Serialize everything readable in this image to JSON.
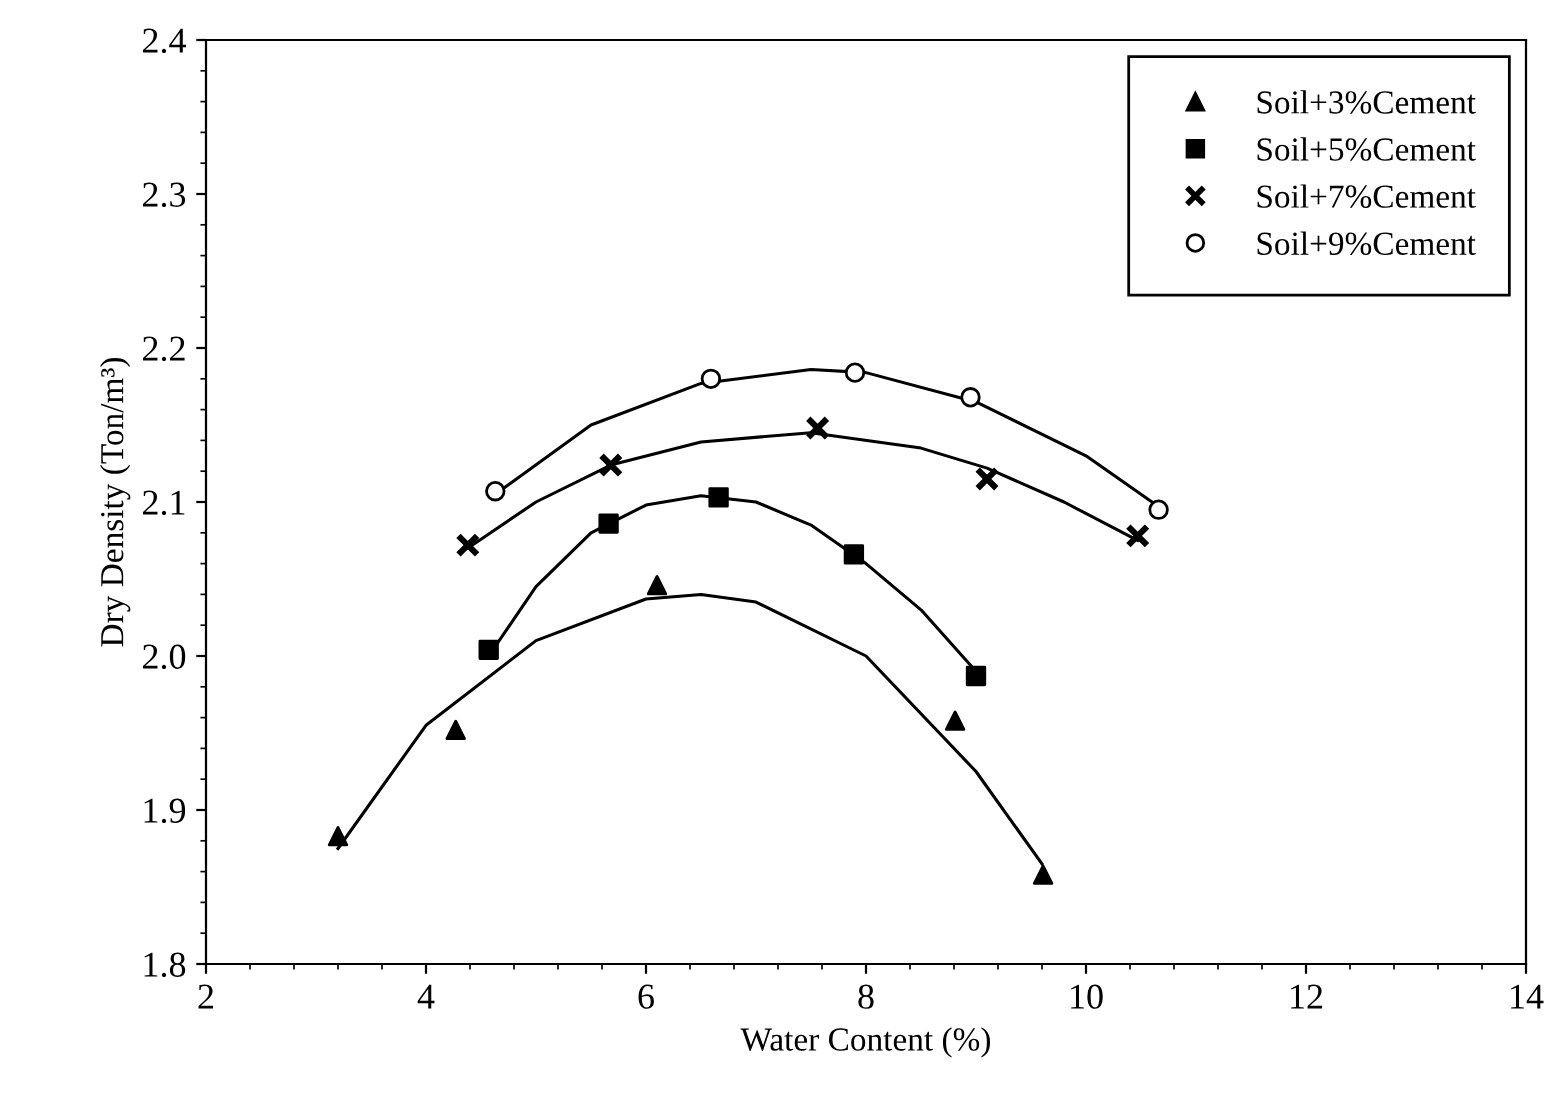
{
  "chart_data": {
    "type": "scatter",
    "xlabel": "Water Content (%)",
    "ylabel": "Dry Density (Ton/m³)",
    "xlim": [
      2,
      14
    ],
    "xticks": [
      2,
      4,
      6,
      8,
      10,
      12,
      14
    ],
    "ylim": [
      1.8,
      2.4
    ],
    "yticks": [
      1.8,
      1.9,
      {
        "value": 2.0,
        "label": "2.0"
      },
      2.1,
      2.2,
      2.3,
      2.4
    ],
    "grid": false,
    "legend": "top right",
    "series": [
      {
        "name": "Soil+3%Cement",
        "color": "#000000",
        "marker": "triangle",
        "x": [
          3.2,
          4.27,
          6.1,
          8.81,
          9.61
        ],
        "values": [
          1.883,
          1.952,
          2.046,
          1.958,
          1.858
        ]
      },
      {
        "name": "Soil+5%Cement",
        "color": "#000000",
        "marker": "square",
        "x": [
          4.57,
          5.66,
          6.66,
          7.89,
          9.0
        ],
        "values": [
          2.004,
          2.086,
          2.103,
          2.066,
          1.987
        ]
      },
      {
        "name": "Soil+7%Cement",
        "color": "#000000",
        "marker": "cross",
        "x": [
          4.38,
          5.68,
          7.56,
          9.1,
          10.47
        ],
        "values": [
          2.072,
          2.124,
          2.148,
          2.115,
          2.078
        ]
      },
      {
        "name": "Soil+9%Cement",
        "color": "#000000",
        "marker": "circle",
        "x": [
          4.63,
          6.59,
          7.9,
          8.95,
          10.66
        ],
        "values": [
          2.107,
          2.18,
          2.184,
          2.168,
          2.095
        ]
      },
      {
        "type": "line",
        "color": "#000000",
        "marker": "none",
        "x": [
          3.2,
          4.0,
          5.0,
          6.0,
          6.5,
          7.0,
          8.0,
          9.0,
          9.6
        ],
        "values": [
          1.875,
          1.955,
          2.01,
          2.037,
          2.04,
          2.035,
          2.0,
          1.925,
          1.865
        ]
      },
      {
        "type": "line",
        "color": "#000000",
        "marker": "none",
        "x": [
          4.57,
          5.0,
          5.5,
          6.0,
          6.5,
          7.0,
          7.5,
          8.0,
          8.5,
          9.0
        ],
        "values": [
          2.0,
          2.045,
          2.08,
          2.098,
          2.104,
          2.1,
          2.085,
          2.06,
          2.03,
          1.99
        ]
      },
      {
        "type": "line",
        "color": "#000000",
        "marker": "none",
        "x": [
          4.38,
          5.0,
          5.68,
          6.5,
          7.5,
          8.5,
          9.1,
          9.8,
          10.47
        ],
        "values": [
          2.07,
          2.1,
          2.124,
          2.139,
          2.145,
          2.135,
          2.122,
          2.1,
          2.075
        ]
      },
      {
        "type": "line",
        "color": "#000000",
        "marker": "none",
        "x": [
          4.63,
          5.5,
          6.5,
          7.5,
          8.0,
          9.0,
          10.0,
          10.66
        ],
        "values": [
          2.105,
          2.15,
          2.177,
          2.186,
          2.184,
          2.165,
          2.13,
          2.097
        ]
      }
    ]
  }
}
